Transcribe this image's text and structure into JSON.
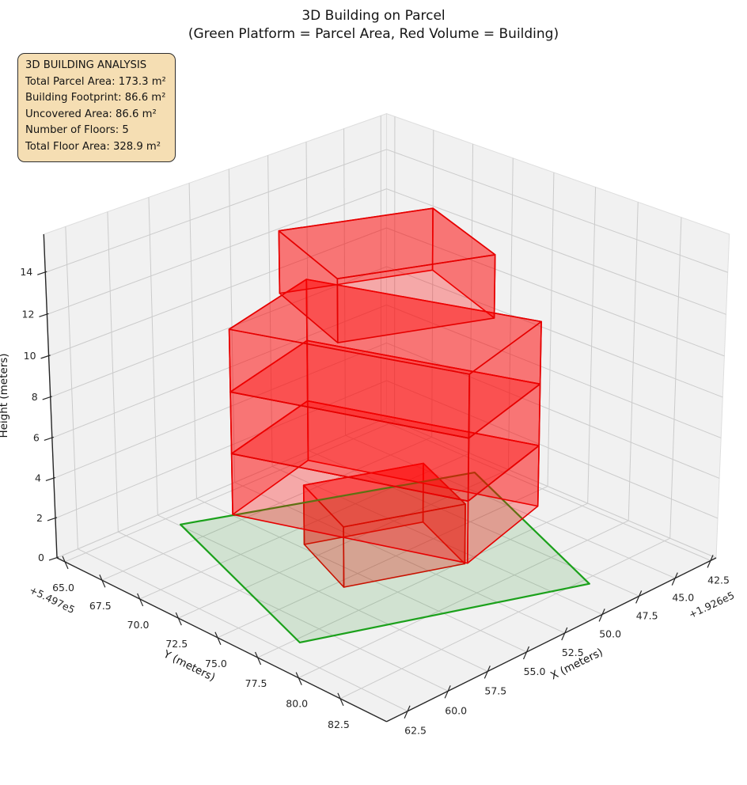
{
  "title": {
    "line1": "3D Building on Parcel",
    "line2": "(Green Platform = Parcel Area, Red Volume = Building)"
  },
  "info_box": {
    "title": "3D BUILDING ANALYSIS",
    "lines": [
      "Total Parcel Area: 173.3 m²",
      "Building Footprint: 86.6 m²",
      "Uncovered Area: 86.6 m²",
      "Number of Floors: 5",
      "Total Floor Area: 328.9 m²"
    ]
  },
  "axes": {
    "x": {
      "label": "X (meters)",
      "offset_text": "+1.926e5",
      "tick_labels": [
        "42.5",
        "45.0",
        "47.5",
        "50.0",
        "52.5",
        "55.0",
        "57.5",
        "60.0",
        "62.5"
      ]
    },
    "y": {
      "label": "Y (meters)",
      "offset_text": "+5.497e5",
      "tick_labels": [
        "65.0",
        "67.5",
        "70.0",
        "72.5",
        "75.0",
        "77.5",
        "80.0",
        "82.5"
      ]
    },
    "z": {
      "label": "Height (meters)",
      "tick_labels": [
        "0",
        "2",
        "4",
        "6",
        "8",
        "10",
        "12",
        "14"
      ]
    }
  },
  "chart_data": {
    "type": "3d-building",
    "title": "3D Building on Parcel",
    "subtitle": "(Green Platform = Parcel Area, Red Volume = Building)",
    "stats": {
      "total_parcel_area_m2": 173.3,
      "building_footprint_m2": 86.6,
      "uncovered_area_m2": 86.6,
      "number_of_floors": 5,
      "total_floor_area_m2": 328.9
    },
    "axes": {
      "x": {
        "label": "X (meters)",
        "offset": "+1.926e5",
        "lim": [
          192642.11,
          192663.78
        ],
        "ticks": [
          192642.5,
          192645.0,
          192647.5,
          192650.0,
          192652.5,
          192655.0,
          192657.5,
          192660.0,
          192662.5
        ]
      },
      "y": {
        "label": "Y (meters)",
        "offset": "+5.497e5",
        "lim": [
          549764.46,
          549785.22
        ],
        "ticks": [
          549765.0,
          549767.5,
          549770.0,
          549772.5,
          549775.0,
          549777.5,
          549780.0,
          549782.5
        ]
      },
      "z": {
        "label": "Height (meters)",
        "lim": [
          0,
          15.8
        ],
        "ticks": [
          0,
          2,
          4,
          6,
          8,
          10,
          12,
          14
        ]
      }
    },
    "parcel": {
      "z": 0,
      "area_m2": 173.3,
      "corners": [
        [
          192657.4,
          549765.9
        ],
        [
          192643.5,
          549771.6
        ],
        [
          192648.2,
          549782.9
        ],
        [
          192661.5,
          549777.8
        ]
      ],
      "edge_color": "#1ba11b",
      "fill_color": "rgba(0,130,0,0.13)"
    },
    "building": {
      "edge_color": "#e60000",
      "face_color": "rgba(255,0,0,0.30)",
      "floor_height_m": 3,
      "floors": [
        {
          "level": 1,
          "z": [
            0,
            3
          ],
          "corners": [
            [
              192654.7,
              549771.3
            ],
            [
              192649.1,
              549773.5
            ],
            [
              192650.8,
              549777.7
            ],
            [
              192656.4,
              549775.5
            ]
          ]
        },
        {
          "level": 2,
          "z": [
            3,
            6
          ],
          "corners": [
            [
              192659.1,
              549771.2
            ],
            [
              192655.0,
              549781.7
            ],
            [
              192648.6,
              549780.1
            ],
            [
              192652.7,
              549769.6
            ]
          ]
        },
        {
          "level": 3,
          "z": [
            6,
            9
          ],
          "corners": [
            [
              192659.1,
              549771.2
            ],
            [
              192655.0,
              549781.7
            ],
            [
              192648.6,
              549780.1
            ],
            [
              192652.7,
              549769.6
            ]
          ]
        },
        {
          "level": 4,
          "z": [
            9,
            12
          ],
          "corners": [
            [
              192659.1,
              549771.2
            ],
            [
              192655.0,
              549781.7
            ],
            [
              192648.6,
              549780.1
            ],
            [
              192652.7,
              549769.6
            ]
          ]
        },
        {
          "level": 5,
          "z": [
            12,
            15
          ],
          "corners": [
            [
              192654.7,
              549769.9
            ],
            [
              192647.8,
              549772.8
            ],
            [
              192649.8,
              549778.4
            ],
            [
              192656.7,
              549775.5
            ]
          ]
        }
      ]
    },
    "style": {
      "pane_color": "#f1f1f1",
      "pane_edge_color": "#dedede",
      "grid_color": "#cbcbcb",
      "spine_color": "#262626",
      "tick_label_color": "#262626"
    }
  }
}
